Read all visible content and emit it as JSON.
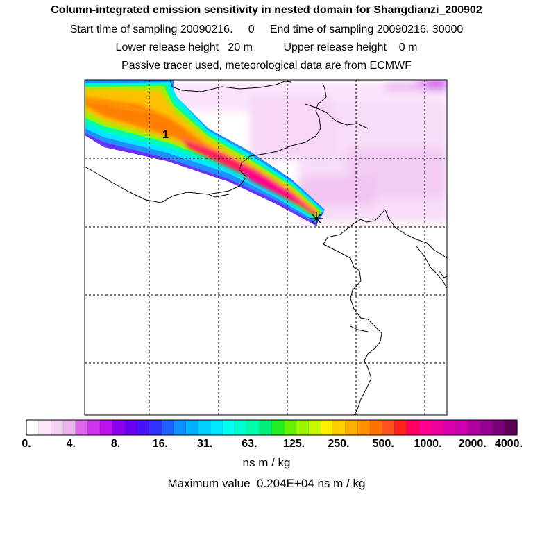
{
  "header": {
    "title": "Column-integrated emission sensitivity in nested domain for Shangdianzi_200902",
    "sampling_line": "Start time of sampling 20090216.     0     End time of sampling 20090216. 30000",
    "release_line": "Lower release height   20 m          Upper release height    0 m",
    "tracer_line": "Passive tracer used, meteorological data are from ECMWF"
  },
  "map": {
    "plume_label": "1",
    "receptor_marker": "Shangdianzi receptor"
  },
  "colorbar": {
    "labels": [
      "0.",
      "4.",
      "8.",
      "16.",
      "31.",
      "63.",
      "125.",
      "250.",
      "500.",
      "1000.",
      "2000.",
      "4000."
    ],
    "colors": [
      "#ffffff",
      "#fbe6fb",
      "#f5d0f5",
      "#eeb6ee",
      "#dd66ee",
      "#cc33ee",
      "#bb11ee",
      "#8800ee",
      "#6a00f0",
      "#4a10f5",
      "#3030ff",
      "#2060ff",
      "#1090ff",
      "#00b0ff",
      "#00cfff",
      "#00e8ff",
      "#00ffee",
      "#00ffcc",
      "#00ffaa",
      "#00ee77",
      "#22ee22",
      "#66f000",
      "#99f400",
      "#c8f800",
      "#ffee00",
      "#ffd000",
      "#ffb000",
      "#ff9000",
      "#ff7000",
      "#ff5020",
      "#ff2020",
      "#ff0060",
      "#ff0090",
      "#ee00a0",
      "#dd00b0",
      "#cc00b0",
      "#b000a0",
      "#960090",
      "#7a0078",
      "#5a0050"
    ],
    "units": "ns m / kg"
  },
  "footer": {
    "max_value": "Maximum value  0.204E+04 ns m / kg"
  }
}
